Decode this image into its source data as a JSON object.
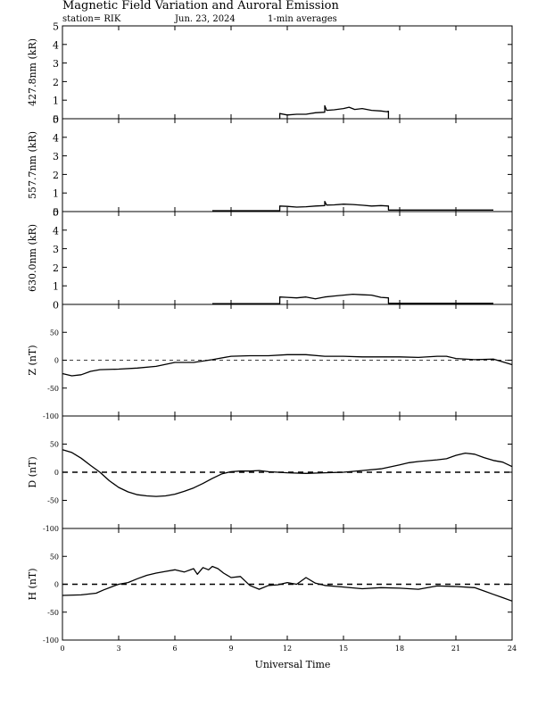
{
  "header": {
    "title": "Magnetic Field Variation and Auroral Emission",
    "station": "station= RIK",
    "date": "Jun. 23, 2024",
    "averaging": "1-min averages"
  },
  "chart_data": [
    {
      "type": "line",
      "ylabel": "427.8nm (kR)",
      "xlim": [
        0,
        24
      ],
      "ylim": [
        0,
        5
      ],
      "yticks": [
        0,
        1,
        2,
        3,
        4,
        5
      ],
      "zero_line": "none",
      "series": [
        {
          "x": [
            11.6,
            11.6,
            12.0,
            12.5,
            13.0,
            13.5,
            14.0,
            14.0,
            14.1,
            14.5,
            15.0,
            15.3,
            15.6,
            16.0,
            16.5,
            17.0,
            17.3,
            17.4,
            17.4
          ],
          "y": [
            0.0,
            0.28,
            0.2,
            0.24,
            0.24,
            0.32,
            0.35,
            0.7,
            0.45,
            0.48,
            0.55,
            0.62,
            0.5,
            0.55,
            0.45,
            0.42,
            0.38,
            0.4,
            0.0
          ]
        }
      ]
    },
    {
      "type": "line",
      "ylabel": "557.7nm (kR)",
      "xlim": [
        0,
        24
      ],
      "ylim": [
        0,
        5
      ],
      "yticks": [
        0,
        1,
        2,
        3,
        4,
        5
      ],
      "zero_line": "none",
      "series": [
        {
          "x": [
            8.0,
            11.6,
            11.6,
            12.0,
            12.5,
            13.0,
            13.5,
            14.0,
            14.0,
            14.1,
            14.5,
            15.0,
            15.5,
            16.0,
            16.5,
            17.0,
            17.4,
            17.4,
            23.0
          ],
          "y": [
            0.05,
            0.05,
            0.3,
            0.28,
            0.24,
            0.26,
            0.3,
            0.32,
            0.55,
            0.35,
            0.36,
            0.4,
            0.38,
            0.34,
            0.3,
            0.32,
            0.3,
            0.08,
            0.08
          ]
        }
      ]
    },
    {
      "type": "line",
      "ylabel": "630.0nm (kR)",
      "xlim": [
        0,
        24
      ],
      "ylim": [
        0,
        5
      ],
      "yticks": [
        0,
        1,
        2,
        3,
        4,
        5
      ],
      "zero_line": "none",
      "series": [
        {
          "x": [
            8.0,
            11.6,
            11.6,
            12.0,
            12.5,
            13.0,
            13.5,
            14.0,
            14.5,
            15.0,
            15.5,
            16.0,
            16.5,
            17.0,
            17.4,
            17.4,
            23.0
          ],
          "y": [
            0.04,
            0.04,
            0.4,
            0.38,
            0.35,
            0.4,
            0.3,
            0.4,
            0.45,
            0.5,
            0.55,
            0.52,
            0.5,
            0.38,
            0.35,
            0.06,
            0.06
          ]
        }
      ]
    },
    {
      "type": "line",
      "ylabel": "Z (nT)",
      "xlim": [
        0,
        24
      ],
      "ylim": [
        -100,
        100
      ],
      "yticks": [
        -100,
        -50,
        0,
        50
      ],
      "zero_line": "dashed-thin",
      "series": [
        {
          "x": [
            0,
            0.5,
            1.0,
            1.5,
            2.0,
            3.0,
            4.0,
            5.0,
            6.0,
            7.0,
            8.0,
            9.0,
            10.0,
            11.0,
            12.0,
            13.0,
            14.0,
            15.0,
            16.0,
            17.0,
            18.0,
            19.0,
            20.0,
            20.5,
            21.0,
            22.0,
            23.0,
            23.5,
            24.0
          ],
          "y": [
            -24,
            -28,
            -26,
            -20,
            -17,
            -16,
            -14,
            -11,
            -4,
            -4,
            1,
            7,
            8,
            8,
            10,
            10,
            7,
            7,
            6,
            6,
            6,
            5,
            7,
            7,
            3,
            1,
            2,
            -3,
            -8
          ]
        }
      ]
    },
    {
      "type": "line",
      "ylabel": "D (nT)",
      "xlim": [
        0,
        24
      ],
      "ylim": [
        -100,
        100
      ],
      "yticks": [
        -100,
        -50,
        0,
        50
      ],
      "zero_line": "dashed-thick",
      "series": [
        {
          "x": [
            0,
            0.5,
            1.0,
            1.5,
            2.0,
            2.5,
            3.0,
            3.5,
            4.0,
            4.5,
            5.0,
            5.5,
            6.0,
            6.5,
            7.0,
            7.5,
            8.0,
            8.5,
            9.0,
            9.5,
            10.0,
            10.5,
            11.0,
            12.0,
            13.0,
            14.0,
            15.0,
            16.0,
            17.0,
            18.0,
            18.5,
            19.0,
            20.0,
            20.5,
            21.0,
            21.5,
            22.0,
            22.5,
            23.0,
            23.5,
            24.0
          ],
          "y": [
            40,
            35,
            25,
            12,
            0,
            -15,
            -27,
            -35,
            -40,
            -42,
            -43,
            -42,
            -39,
            -34,
            -28,
            -20,
            -11,
            -3,
            1,
            2,
            2,
            3,
            1,
            -1,
            -2,
            -1,
            0,
            3,
            6,
            13,
            17,
            19,
            22,
            24,
            30,
            34,
            32,
            26,
            21,
            18,
            10
          ]
        }
      ]
    },
    {
      "type": "line",
      "ylabel": "H (nT)",
      "xlim": [
        0,
        24
      ],
      "ylim": [
        -100,
        100
      ],
      "yticks": [
        -100,
        -50,
        0,
        50
      ],
      "zero_line": "dashed-thick",
      "series": [
        {
          "x": [
            0,
            1.0,
            1.8,
            2.2,
            2.6,
            3.0,
            3.5,
            4.0,
            4.5,
            5.0,
            5.5,
            6.0,
            6.5,
            7.0,
            7.2,
            7.5,
            7.8,
            8.0,
            8.3,
            8.6,
            9.0,
            9.5,
            10.0,
            10.5,
            11.0,
            11.5,
            12.0,
            12.5,
            13.0,
            13.5,
            14.0,
            15.0,
            16.0,
            17.0,
            18.0,
            19.0,
            20.0,
            21.0,
            22.0,
            22.5,
            23.0,
            23.5,
            24.0
          ],
          "y": [
            -20,
            -19,
            -16,
            -10,
            -5,
            0,
            3,
            10,
            16,
            20,
            23,
            26,
            22,
            28,
            18,
            30,
            26,
            32,
            28,
            20,
            12,
            14,
            -2,
            -9,
            -2,
            -1,
            3,
            0,
            12,
            2,
            -2,
            -5,
            -8,
            -6,
            -7,
            -9,
            -3,
            -4,
            -6,
            -12,
            -18,
            -24,
            -30
          ]
        }
      ]
    }
  ],
  "x_axis": {
    "label": "Universal Time",
    "ticks": [
      0,
      3,
      6,
      9,
      12,
      15,
      18,
      21,
      24
    ]
  }
}
